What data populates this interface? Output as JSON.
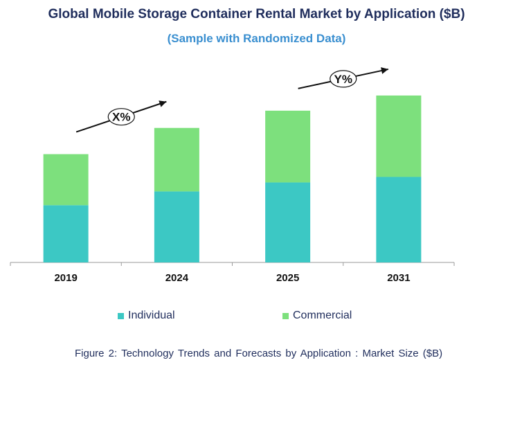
{
  "title": "Global Mobile Storage Container Rental Market by Application ($B)",
  "subtitle": "(Sample with Randomized Data)",
  "caption": "Figure 2: Technology Trends and Forecasts by Application : Market Size ($B)",
  "chart_data": {
    "type": "bar",
    "stacked": true,
    "categories": [
      "2019",
      "2024",
      "2025",
      "2031"
    ],
    "series": [
      {
        "name": "Individual",
        "values": [
          83,
          103,
          116,
          124
        ],
        "color": "#3cc8c4"
      },
      {
        "name": "Commercial",
        "values": [
          74,
          92,
          104,
          118
        ],
        "color": "#7de07d"
      }
    ],
    "ylim": [
      0,
      260
    ],
    "grid": false,
    "legend_position": "bottom",
    "annotations": [
      {
        "text": "X%",
        "from": "2019",
        "to": "2024"
      },
      {
        "text": "Y%",
        "from": "2025",
        "to": "2031"
      }
    ]
  }
}
